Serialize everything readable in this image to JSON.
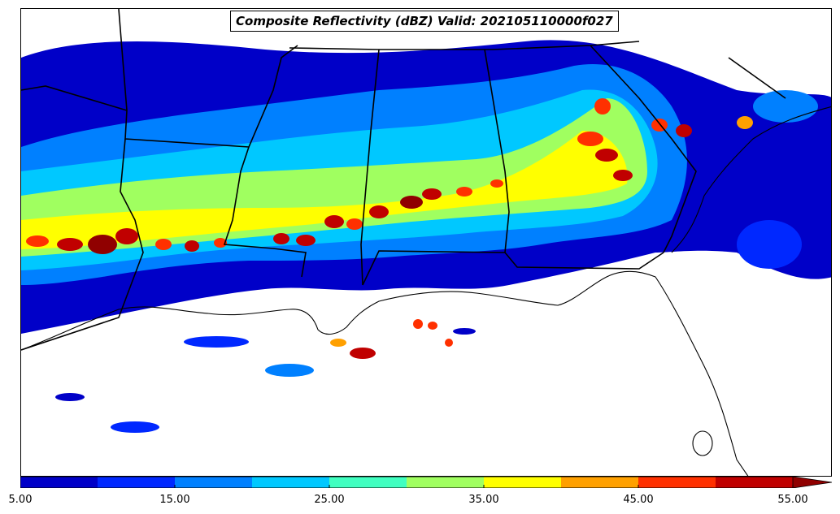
{
  "title": "Composite Reflectivity (dBZ) Valid: 202105110000f027",
  "colorbar": {
    "min": 5,
    "max": 55,
    "extend": "max",
    "tick_labels": [
      "5.00",
      "15.00",
      "25.00",
      "35.00",
      "45.00",
      "55.00"
    ],
    "tick_values": [
      5,
      15,
      25,
      35,
      45,
      55
    ],
    "bins": [
      5,
      10,
      15,
      20,
      25,
      30,
      35,
      40,
      45,
      50,
      55
    ],
    "colors": [
      "#0000c8",
      "#0028ff",
      "#0080ff",
      "#00c8ff",
      "#40ffc0",
      "#a0ff60",
      "#ffff00",
      "#ffa000",
      "#ff3000",
      "#c00000",
      "#900000"
    ]
  },
  "map": {
    "land_color": "#ffffff",
    "border_color": "#000000",
    "region": "Southeastern United States and northern Gulf of Mexico"
  }
}
